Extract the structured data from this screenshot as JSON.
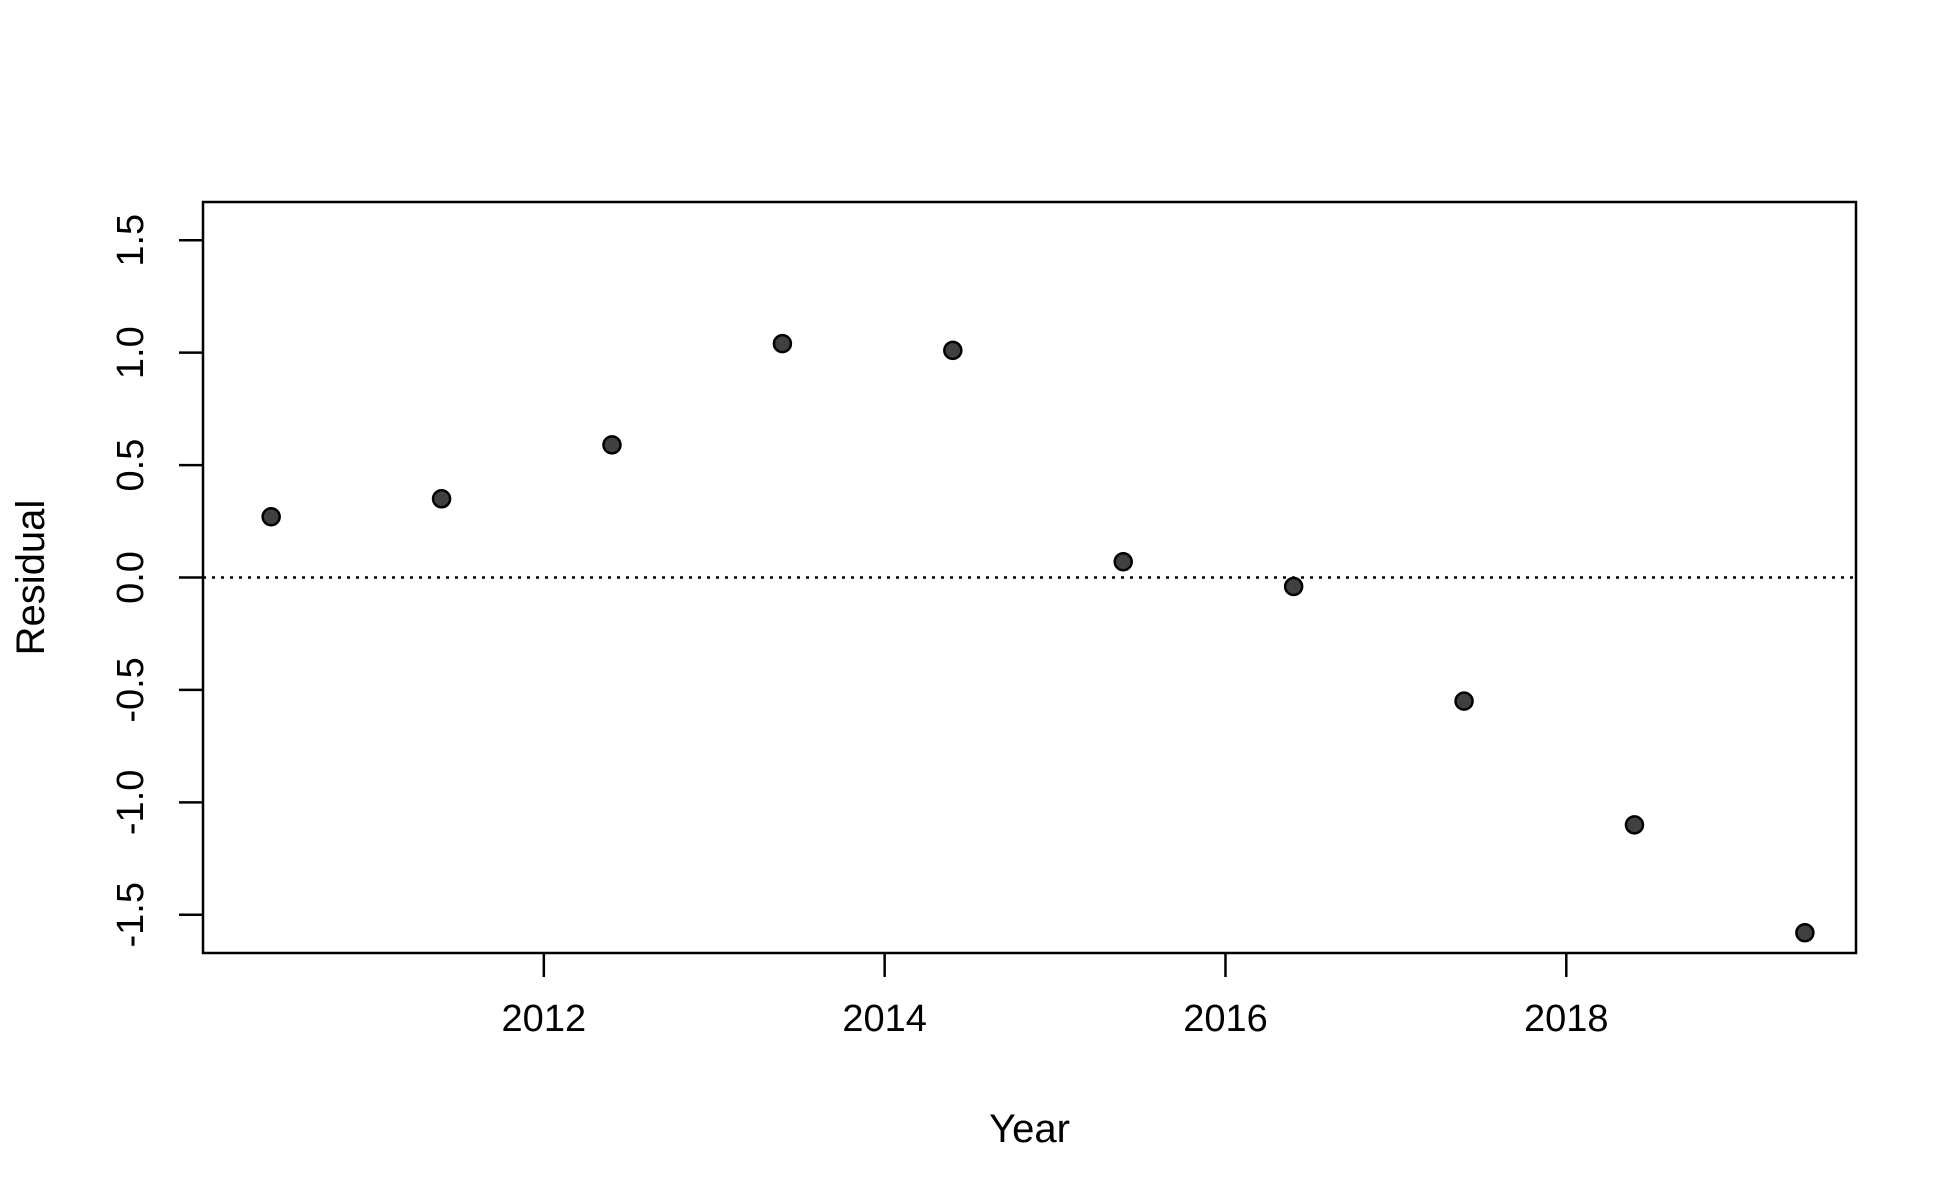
{
  "chart_data": {
    "type": "scatter",
    "title": "",
    "xlabel": "Year",
    "ylabel": "Residual",
    "xlim": [
      2010.0,
      2019.7
    ],
    "ylim": [
      -1.67,
      1.67
    ],
    "xticks": [
      2012,
      2014,
      2016,
      2018
    ],
    "yticks": [
      -1.5,
      -1.0,
      -0.5,
      0.0,
      0.5,
      1.0,
      1.5
    ],
    "xtick_labels": [
      "2012",
      "2014",
      "2016",
      "2018"
    ],
    "ytick_labels": [
      "-1.5",
      "-1.0",
      "-0.5",
      "0.0",
      "0.5",
      "1.0",
      "1.5"
    ],
    "reference_line": {
      "y": 0.0,
      "style": "dotted"
    },
    "grid": false,
    "legend": "none",
    "point_color": "#404040",
    "points": [
      {
        "x": 2010.4,
        "y": 0.27
      },
      {
        "x": 2011.4,
        "y": 0.35
      },
      {
        "x": 2012.4,
        "y": 0.59
      },
      {
        "x": 2013.4,
        "y": 1.04
      },
      {
        "x": 2014.4,
        "y": 1.01
      },
      {
        "x": 2015.4,
        "y": 0.07
      },
      {
        "x": 2016.4,
        "y": -0.04
      },
      {
        "x": 2017.4,
        "y": -0.55
      },
      {
        "x": 2018.4,
        "y": -1.1
      },
      {
        "x": 2019.4,
        "y": -1.58
      }
    ]
  }
}
